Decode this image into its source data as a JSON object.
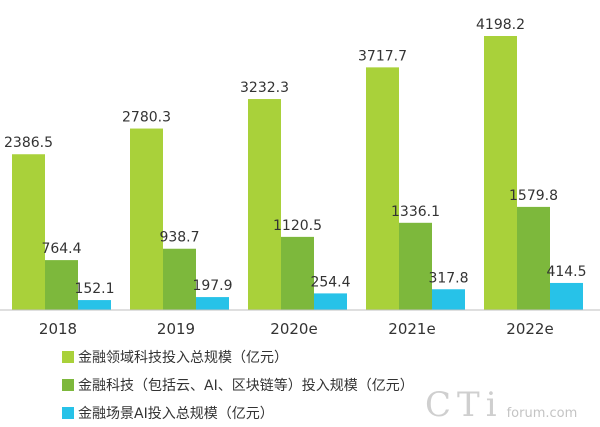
{
  "chart_data": {
    "type": "bar",
    "categories": [
      "2018",
      "2019",
      "2020e",
      "2021e",
      "2022e"
    ],
    "series": [
      {
        "name": "金融领域科技投入总规模（亿元）",
        "color": "#A9D13A",
        "values": [
          2386.5,
          2780.3,
          3232.3,
          3717.7,
          4198.2
        ]
      },
      {
        "name": "金融科技（包括云、AI、区块链等）投入规模（亿元）",
        "color": "#7DB83C",
        "values": [
          764.4,
          938.7,
          1120.5,
          1336.1,
          1579.8
        ]
      },
      {
        "name": "金融场景AI投入总规模（亿元）",
        "color": "#27C2E8",
        "values": [
          152.1,
          197.9,
          254.4,
          317.8,
          414.5
        ]
      }
    ],
    "ylim": [
      0,
      4500
    ],
    "grid": false,
    "legend_position": "bottom-left"
  },
  "watermark": {
    "logo": "CTi",
    "text": "forum.com"
  }
}
